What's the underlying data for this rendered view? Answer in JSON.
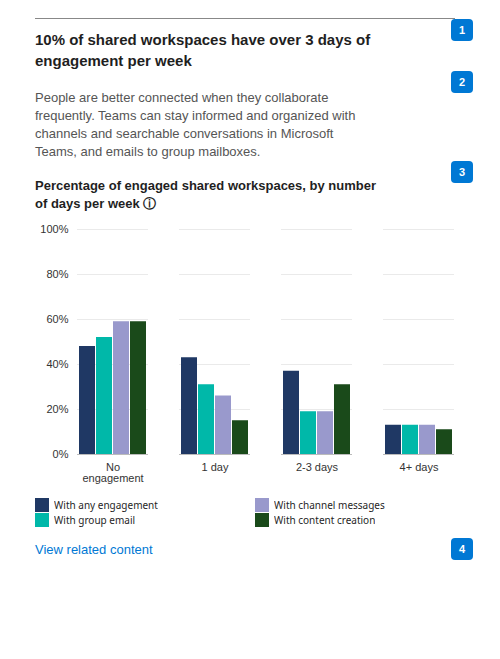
{
  "chart_data": {
    "type": "bar",
    "title": "Percentage of engaged shared workspaces, by number\nof days per week ⓘ",
    "annotations": [
      "10% of shared workspaces have over 3 days of\nengagement per week",
      "People are better connected when they collaborate\nfrequently. Teams can stay informed and organized with\nchannels and searchable conversations in Microsoft\nTeams, and emails to group mailboxes.",
      "View related content",
      "1",
      "2",
      "3",
      "4"
    ],
    "categories": [
      "No\nengagement",
      "1 day",
      "2-3 days",
      "4+ days"
    ],
    "series": [
      {
        "name": "With any engagement",
        "color": "#1F3864",
        "values": [
          48,
          43,
          37,
          13
        ]
      },
      {
        "name": "With group email",
        "color": "#00B8A9",
        "values": [
          52,
          31,
          19,
          13
        ]
      },
      {
        "name": "With channel messages",
        "color": "#9999CC",
        "values": [
          59,
          26,
          19,
          13
        ]
      },
      {
        "name": "With content creation",
        "color": "#1A4A1A",
        "values": [
          59,
          15,
          31,
          11
        ]
      }
    ],
    "ylim": [
      0,
      100
    ],
    "yticks": [
      {
        "value": 0,
        "label": "0%"
      },
      {
        "value": 20,
        "label": "20%"
      },
      {
        "value": 40,
        "label": "40%"
      },
      {
        "value": 60,
        "label": "60%"
      },
      {
        "value": 80,
        "label": "80%"
      },
      {
        "value": 100,
        "label": "100%"
      }
    ],
    "grid": true,
    "legend": "bottom"
  }
}
